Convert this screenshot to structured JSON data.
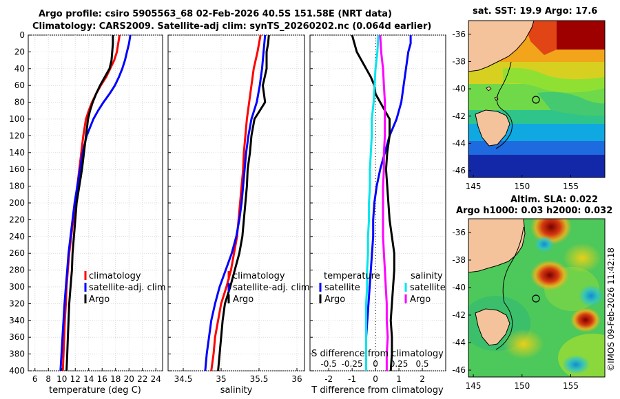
{
  "titles": {
    "line1": "Argo profile: csiro 5905563_68 02-Feb-2026 40.5S 151.58E (NRT data)",
    "line2": "Climatology: CARS2009. Satellite-adj clim: synTS_20260202.nc (0.064d earlier)",
    "sst_map": "sat. SST: 19.9 Argo: 17.6",
    "alt_map_line1": "Altim. SLA: 0.022",
    "alt_map_line2": "Argo h1000: 0.03 h2000: 0.032"
  },
  "credit": "©IMOS 09-Feb-2026 11:42:18",
  "colors": {
    "climatology": "#ff0000",
    "satellite": "#0000ff",
    "argo": "#000000",
    "sat_salinity": "#00e5ee",
    "argo_salinity": "#ff00ff",
    "land": "#f5c39b"
  },
  "chart_data": [
    {
      "type": "line",
      "id": "temperature",
      "xlabel": "temperature (deg C)",
      "ylabel": "",
      "xlim": [
        5,
        25
      ],
      "ylim": [
        400,
        0
      ],
      "xticks": [
        6,
        8,
        10,
        12,
        14,
        16,
        18,
        20,
        22,
        24
      ],
      "yticks": [
        0,
        20,
        40,
        60,
        80,
        100,
        120,
        140,
        160,
        180,
        200,
        220,
        240,
        260,
        280,
        300,
        320,
        340,
        360,
        380,
        400
      ],
      "legend": [
        "climatology",
        "satellite-adj. clim",
        "Argo"
      ],
      "series": [
        {
          "name": "climatology",
          "color": "#ff0000",
          "depth": [
            0,
            10,
            20,
            30,
            40,
            50,
            60,
            70,
            80,
            90,
            100,
            120,
            140,
            160,
            180,
            200,
            220,
            240,
            260,
            280,
            300,
            320,
            340,
            360,
            380,
            400
          ],
          "values": [
            18.6,
            18.4,
            18.2,
            17.8,
            17.2,
            16.6,
            15.8,
            15.1,
            14.5,
            14.0,
            13.6,
            13.2,
            12.9,
            12.6,
            12.3,
            12.0,
            11.7,
            11.4,
            11.1,
            10.9,
            10.7,
            10.6,
            10.45,
            10.35,
            10.25,
            10.15
          ]
        },
        {
          "name": "satellite-adj. clim",
          "color": "#0000ff",
          "depth": [
            0,
            10,
            20,
            30,
            40,
            50,
            60,
            70,
            80,
            90,
            100,
            120,
            140,
            160,
            180,
            200,
            220,
            240,
            260,
            280,
            300,
            320,
            340,
            360,
            380,
            400
          ],
          "values": [
            20.2,
            20.0,
            19.7,
            19.4,
            19.0,
            18.5,
            17.9,
            17.1,
            16.2,
            15.4,
            14.7,
            13.7,
            13.1,
            12.7,
            12.3,
            11.9,
            11.6,
            11.3,
            11.0,
            10.8,
            10.6,
            10.4,
            10.25,
            10.1,
            9.95,
            9.8
          ]
        },
        {
          "name": "Argo",
          "color": "#000000",
          "depth": [
            0,
            10,
            20,
            30,
            40,
            50,
            60,
            70,
            80,
            90,
            100,
            120,
            140,
            160,
            180,
            200,
            220,
            240,
            260,
            280,
            300,
            320,
            340,
            360,
            380,
            400
          ],
          "values": [
            17.6,
            17.6,
            17.5,
            17.4,
            17.1,
            16.4,
            15.7,
            15.1,
            14.6,
            14.2,
            13.9,
            13.6,
            13.3,
            13.0,
            12.6,
            12.2,
            12.0,
            11.8,
            11.6,
            11.5,
            11.3,
            11.1,
            11.0,
            10.9,
            10.8,
            10.7
          ]
        }
      ]
    },
    {
      "type": "line",
      "id": "salinity",
      "xlabel": "salinity",
      "xlim": [
        34.3,
        36.1
      ],
      "ylim": [
        400,
        0
      ],
      "xticks": [
        34.5,
        35,
        35.5,
        36
      ],
      "xticklabels": [
        "34.5",
        "35",
        "35.5",
        "36"
      ],
      "legend": [
        "climatology",
        "satellite-adj. clim",
        "Argo"
      ],
      "series": [
        {
          "name": "climatology",
          "color": "#ff0000",
          "depth": [
            0,
            10,
            20,
            40,
            60,
            80,
            100,
            120,
            140,
            160,
            180,
            200,
            220,
            240,
            260,
            280,
            300,
            320,
            340,
            360,
            380,
            400
          ],
          "values": [
            35.52,
            35.5,
            35.48,
            35.43,
            35.4,
            35.37,
            35.34,
            35.32,
            35.3,
            35.29,
            35.27,
            35.25,
            35.23,
            35.21,
            35.17,
            35.13,
            35.07,
            35.0,
            34.96,
            34.92,
            34.9,
            34.87
          ]
        },
        {
          "name": "satellite-adj. clim",
          "color": "#0000ff",
          "depth": [
            0,
            10,
            20,
            40,
            60,
            80,
            100,
            120,
            140,
            160,
            180,
            200,
            220,
            240,
            260,
            280,
            300,
            320,
            340,
            360,
            380,
            400
          ],
          "values": [
            35.58,
            35.57,
            35.56,
            35.54,
            35.51,
            35.47,
            35.4,
            35.36,
            35.33,
            35.31,
            35.29,
            35.27,
            35.24,
            35.2,
            35.14,
            35.06,
            34.98,
            34.92,
            34.87,
            34.84,
            34.81,
            34.79
          ]
        },
        {
          "name": "Argo",
          "color": "#000000",
          "depth": [
            0,
            10,
            20,
            40,
            60,
            80,
            100,
            120,
            140,
            160,
            180,
            200,
            220,
            240,
            260,
            280,
            300,
            320,
            340,
            360,
            380,
            400
          ],
          "values": [
            35.63,
            35.62,
            35.6,
            35.6,
            35.55,
            35.58,
            35.44,
            35.4,
            35.38,
            35.35,
            35.34,
            35.32,
            35.3,
            35.28,
            35.24,
            35.18,
            35.12,
            35.05,
            35.02,
            35.0,
            34.98,
            34.96
          ]
        }
      ]
    },
    {
      "type": "line",
      "id": "difference",
      "xlabel": "T difference from climatology",
      "xlabel_top": "S difference from climatology",
      "xlim": [
        -2.8,
        3.0
      ],
      "ylim": [
        400,
        0
      ],
      "xticks": [
        -2,
        -1,
        0,
        1,
        2
      ],
      "top_ticks": [
        -0.5,
        -0.25,
        0,
        0.25,
        0.5
      ],
      "top_ticklabels": [
        "-0.5",
        "-0.25",
        "0",
        "0.25",
        "0.5"
      ],
      "legend_temperature_title": "temperature",
      "legend_salinity_title": "salinity",
      "legend_temperature": [
        "satellite",
        "Argo"
      ],
      "legend_salinity": [
        "satellite",
        "Argo"
      ],
      "series": [
        {
          "name": "temperature satellite",
          "color": "#0000ff",
          "scale": "T",
          "depth": [
            0,
            10,
            20,
            40,
            60,
            80,
            100,
            120,
            140,
            160,
            180,
            200,
            220,
            240,
            260,
            280,
            300,
            320,
            340,
            360,
            380,
            400
          ],
          "values": [
            1.5,
            1.5,
            1.4,
            1.3,
            1.2,
            1.1,
            0.9,
            0.6,
            0.4,
            0.2,
            0.05,
            -0.05,
            -0.1,
            -0.1,
            -0.15,
            -0.2,
            -0.25,
            -0.3,
            -0.35,
            -0.4,
            -0.4,
            -0.4
          ]
        },
        {
          "name": "temperature Argo",
          "color": "#000000",
          "scale": "T",
          "depth": [
            0,
            10,
            20,
            30,
            40,
            50,
            60,
            70,
            80,
            90,
            100,
            120,
            140,
            160,
            180,
            200,
            220,
            240,
            260,
            280,
            300,
            320,
            340,
            360,
            380,
            400
          ],
          "values": [
            -1.0,
            -0.9,
            -0.8,
            -0.6,
            -0.4,
            -0.2,
            -0.05,
            0.0,
            0.2,
            0.4,
            0.6,
            0.6,
            0.5,
            0.45,
            0.5,
            0.55,
            0.6,
            0.7,
            0.8,
            0.8,
            0.75,
            0.7,
            0.65,
            0.7,
            0.7,
            0.65
          ]
        },
        {
          "name": "salinity satellite",
          "color": "#00e5ee",
          "scale": "S",
          "depth": [
            0,
            20,
            40,
            60,
            80,
            100,
            120,
            140,
            160,
            180,
            200,
            220,
            240,
            260,
            280,
            300,
            320,
            340,
            360,
            380,
            400
          ],
          "values": [
            0.03,
            0.02,
            0.0,
            -0.01,
            -0.02,
            -0.04,
            -0.04,
            -0.05,
            -0.06,
            -0.06,
            -0.07,
            -0.07,
            -0.08,
            -0.08,
            -0.09,
            -0.09,
            -0.1,
            -0.1,
            -0.1,
            -0.1,
            -0.1
          ]
        },
        {
          "name": "salinity Argo",
          "color": "#ff00ff",
          "scale": "S",
          "depth": [
            0,
            20,
            40,
            60,
            80,
            100,
            120,
            140,
            160,
            180,
            200,
            220,
            240,
            260,
            280,
            300,
            320,
            340,
            360,
            380,
            400
          ],
          "values": [
            0.05,
            0.06,
            0.08,
            0.09,
            0.1,
            0.1,
            0.1,
            0.09,
            0.09,
            0.08,
            0.08,
            0.08,
            0.08,
            0.09,
            0.1,
            0.11,
            0.12,
            0.12,
            0.13,
            0.12,
            0.12
          ]
        }
      ]
    },
    {
      "type": "heatmap",
      "id": "sst_map",
      "title": "sat. SST: 19.9 Argo: 17.6",
      "xlim": [
        144.5,
        158.5
      ],
      "ylim": [
        -46.5,
        -35
      ],
      "xticks": [
        145,
        150,
        155
      ],
      "yticks": [
        -36,
        -38,
        -40,
        -42,
        -44,
        -46
      ],
      "float_position": {
        "lon": 151.58,
        "lat": -40.5
      }
    },
    {
      "type": "heatmap",
      "id": "altimetry_map",
      "title": "Altim. SLA: 0.022",
      "xlim": [
        144.5,
        158.5
      ],
      "ylim": [
        -46.5,
        -35
      ],
      "xticks": [
        145,
        150,
        155
      ],
      "yticks": [
        -36,
        -38,
        -40,
        -42,
        -44,
        -46
      ],
      "float_position": {
        "lon": 151.58,
        "lat": -40.5
      }
    }
  ]
}
